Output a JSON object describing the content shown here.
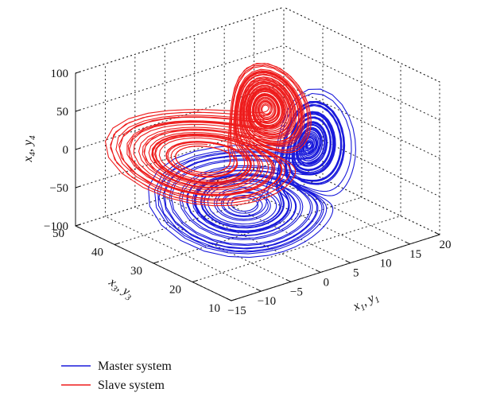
{
  "chart_data": {
    "type": "line",
    "projection": "3d",
    "title": "",
    "axes": {
      "x": {
        "label_base": "x",
        "label_sub": "1",
        "label_base2": "y",
        "label_sub2": "1",
        "ticks": [
          "−15",
          "−10",
          "−5",
          "0",
          "5",
          "10",
          "15",
          "20"
        ],
        "range": [
          -15,
          20
        ]
      },
      "y": {
        "label_base": "x",
        "label_sub": "3",
        "label_base2": "y",
        "label_sub2": "3",
        "ticks": [
          "10",
          "20",
          "30",
          "40",
          "50"
        ],
        "range": [
          10,
          50
        ]
      },
      "z": {
        "label_base": "x",
        "label_sub": "4",
        "label_base2": "y",
        "label_sub2": "4",
        "ticks": [
          "−100",
          "−50",
          "0",
          "50",
          "100"
        ],
        "range": [
          -100,
          100
        ]
      }
    },
    "grid": true,
    "legend_position": "bottom-left",
    "series": [
      {
        "name": "Master system",
        "color": "#1a1adb"
      },
      {
        "name": "Slave system",
        "color": "#ee1c1c"
      }
    ]
  }
}
